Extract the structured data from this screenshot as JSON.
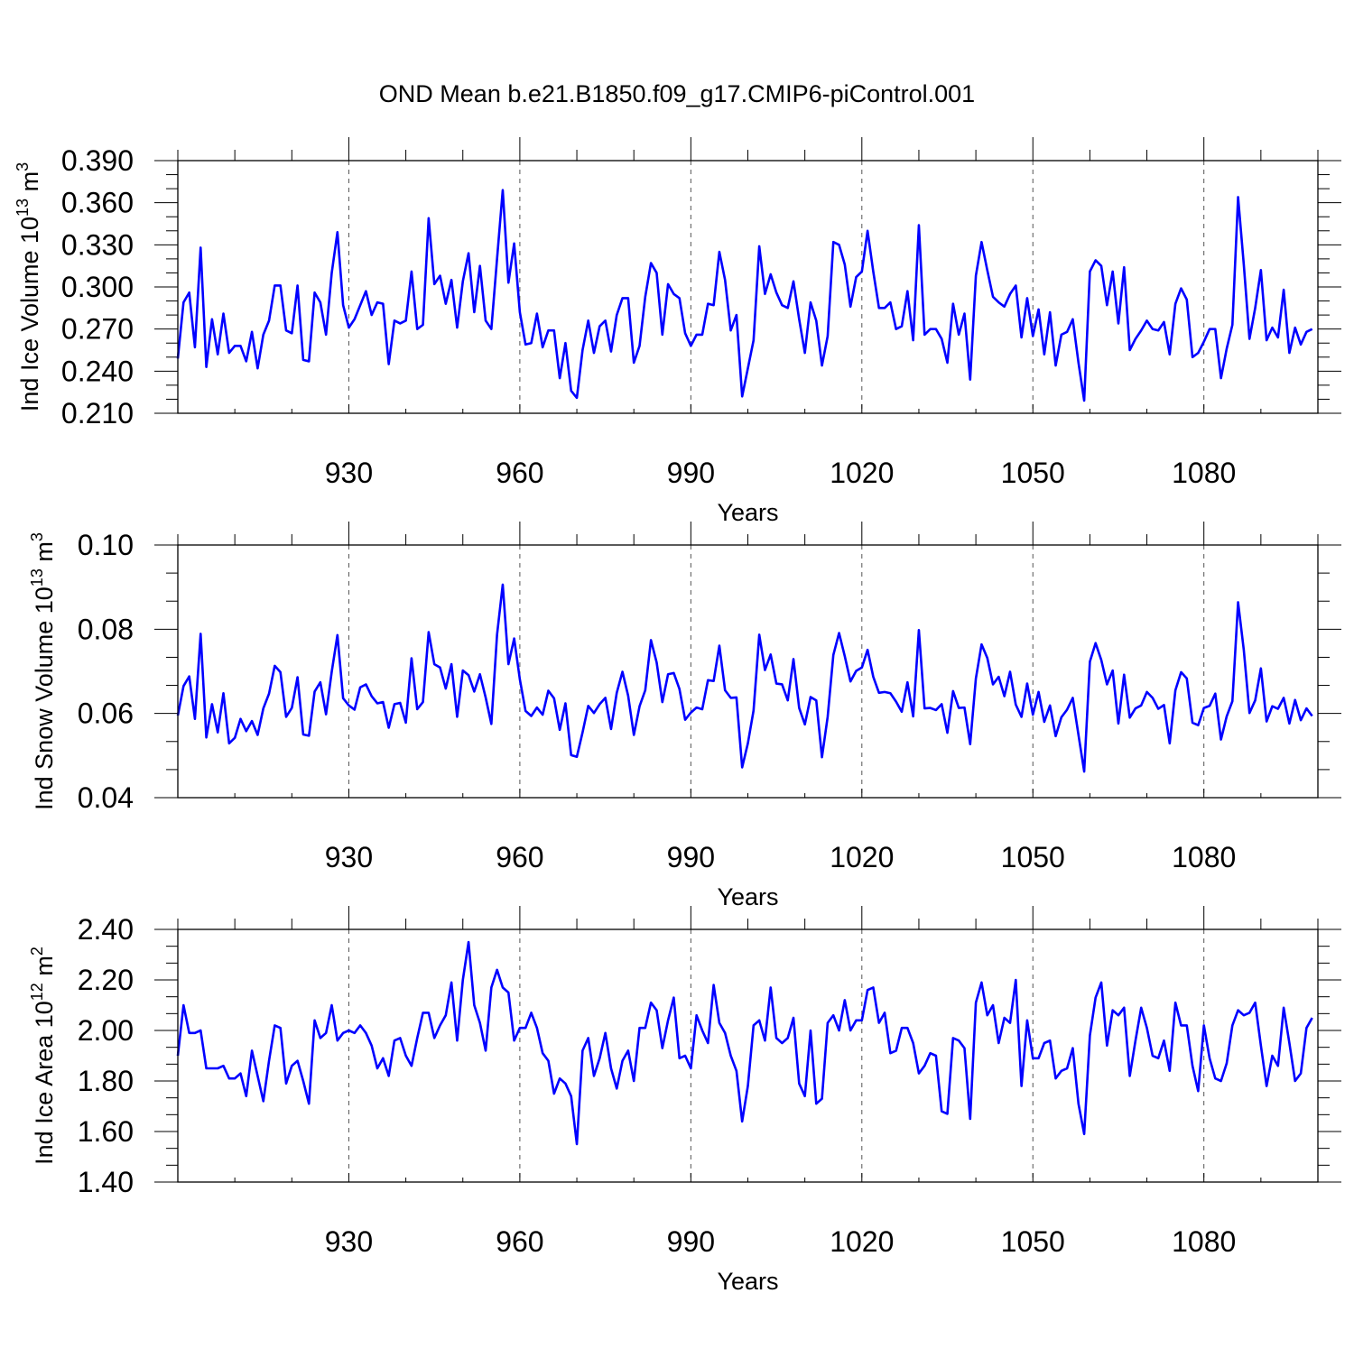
{
  "title": "OND Mean b.e21.B1850.f09_g17.CMIP6-piControl.001",
  "chart_data": [
    {
      "type": "line",
      "ylabel_main": "Ind Ice Volume 10",
      "ylabel_sup": "13",
      "ylabel_unit": " m",
      "ylabel_unit_sup": "3",
      "xlabel": "Years",
      "xlim": [
        900,
        1100
      ],
      "ylim": [
        0.21,
        0.39
      ],
      "y_ticks": [
        "0.210",
        "0.240",
        "0.270",
        "0.300",
        "0.330",
        "0.360",
        "0.390"
      ],
      "y_tick_values": [
        0.21,
        0.24,
        0.27,
        0.3,
        0.33,
        0.36,
        0.39
      ],
      "x_ticks": [
        "930",
        "960",
        "990",
        "1020",
        "1050",
        "1080"
      ],
      "x_tick_values": [
        930,
        960,
        990,
        1020,
        1050,
        1080
      ],
      "line_color": "#0000ff",
      "x_start": 900,
      "values": [
        0.249,
        0.289,
        0.296,
        0.257,
        0.328,
        0.243,
        0.277,
        0.252,
        0.281,
        0.253,
        0.258,
        0.258,
        0.247,
        0.268,
        0.242,
        0.266,
        0.276,
        0.301,
        0.301,
        0.269,
        0.267,
        0.301,
        0.248,
        0.247,
        0.296,
        0.289,
        0.266,
        0.31,
        0.339,
        0.287,
        0.271,
        0.277,
        0.287,
        0.297,
        0.28,
        0.289,
        0.288,
        0.245,
        0.276,
        0.274,
        0.276,
        0.311,
        0.27,
        0.273,
        0.349,
        0.302,
        0.308,
        0.288,
        0.305,
        0.271,
        0.304,
        0.324,
        0.282,
        0.315,
        0.276,
        0.27,
        0.32,
        0.369,
        0.303,
        0.331,
        0.282,
        0.259,
        0.26,
        0.281,
        0.257,
        0.269,
        0.269,
        0.235,
        0.26,
        0.226,
        0.221,
        0.255,
        0.276,
        0.253,
        0.272,
        0.276,
        0.254,
        0.28,
        0.292,
        0.292,
        0.246,
        0.258,
        0.293,
        0.317,
        0.31,
        0.266,
        0.302,
        0.295,
        0.292,
        0.267,
        0.258,
        0.266,
        0.266,
        0.288,
        0.287,
        0.325,
        0.305,
        0.269,
        0.28,
        0.222,
        0.242,
        0.262,
        0.329,
        0.295,
        0.309,
        0.296,
        0.287,
        0.285,
        0.304,
        0.277,
        0.253,
        0.289,
        0.276,
        0.244,
        0.265,
        0.332,
        0.33,
        0.316,
        0.286,
        0.307,
        0.311,
        0.34,
        0.311,
        0.285,
        0.285,
        0.289,
        0.27,
        0.272,
        0.297,
        0.262,
        0.344,
        0.266,
        0.27,
        0.27,
        0.263,
        0.246,
        0.288,
        0.266,
        0.281,
        0.234,
        0.308,
        0.332,
        0.312,
        0.293,
        0.289,
        0.286,
        0.295,
        0.301,
        0.264,
        0.292,
        0.265,
        0.284,
        0.252,
        0.282,
        0.244,
        0.266,
        0.268,
        0.277,
        0.246,
        0.219,
        0.311,
        0.319,
        0.315,
        0.287,
        0.311,
        0.274,
        0.314,
        0.255,
        0.263,
        0.269,
        0.276,
        0.27,
        0.269,
        0.275,
        0.252,
        0.288,
        0.299,
        0.291,
        0.25,
        0.253,
        0.261,
        0.27,
        0.27,
        0.235,
        0.256,
        0.273,
        0.364,
        0.316,
        0.263,
        0.285,
        0.312,
        0.262,
        0.271,
        0.264,
        0.298,
        0.253,
        0.271,
        0.259,
        0.268,
        0.27
      ]
    },
    {
      "type": "line",
      "ylabel_main": "Ind Snow Volume 10",
      "ylabel_sup": "13",
      "ylabel_unit": " m",
      "ylabel_unit_sup": "3",
      "xlabel": "Years",
      "xlim": [
        900,
        1100
      ],
      "ylim": [
        0.04,
        0.1
      ],
      "y_ticks": [
        "0.04",
        "0.06",
        "0.08",
        "0.10"
      ],
      "y_tick_values": [
        0.04,
        0.06,
        0.08,
        0.1
      ],
      "x_ticks": [
        "930",
        "960",
        "990",
        "1020",
        "1050",
        "1080"
      ],
      "x_tick_values": [
        930,
        960,
        990,
        1020,
        1050,
        1080
      ],
      "line_color": "#0000ff",
      "x_start": 900,
      "values": [
        0.0595,
        0.0665,
        0.0688,
        0.0587,
        0.0789,
        0.0543,
        0.0622,
        0.0555,
        0.0648,
        0.0529,
        0.0542,
        0.0587,
        0.0558,
        0.0582,
        0.0549,
        0.0612,
        0.0647,
        0.0713,
        0.0698,
        0.0592,
        0.0613,
        0.0686,
        0.055,
        0.0547,
        0.0652,
        0.0674,
        0.0598,
        0.0699,
        0.0786,
        0.0636,
        0.0619,
        0.0609,
        0.0662,
        0.0669,
        0.0641,
        0.0624,
        0.0627,
        0.0566,
        0.0622,
        0.0625,
        0.0578,
        0.0731,
        0.061,
        0.0627,
        0.0793,
        0.0717,
        0.0709,
        0.0659,
        0.0717,
        0.0592,
        0.0702,
        0.0691,
        0.0652,
        0.0693,
        0.0638,
        0.0575,
        0.0787,
        0.0906,
        0.0717,
        0.0778,
        0.0681,
        0.0606,
        0.0594,
        0.0614,
        0.0597,
        0.0654,
        0.0636,
        0.0561,
        0.0624,
        0.0501,
        0.0497,
        0.0555,
        0.0618,
        0.0601,
        0.0622,
        0.0637,
        0.0563,
        0.0649,
        0.0699,
        0.0642,
        0.0549,
        0.0617,
        0.0655,
        0.0774,
        0.0721,
        0.0627,
        0.0693,
        0.0696,
        0.0658,
        0.0585,
        0.0602,
        0.0614,
        0.061,
        0.0679,
        0.0677,
        0.0761,
        0.0655,
        0.0637,
        0.0638,
        0.0472,
        0.0529,
        0.0607,
        0.0787,
        0.0703,
        0.074,
        0.0671,
        0.0669,
        0.0631,
        0.0729,
        0.0613,
        0.0574,
        0.0639,
        0.0631,
        0.0496,
        0.0592,
        0.0739,
        0.0791,
        0.0736,
        0.0676,
        0.0701,
        0.0709,
        0.0751,
        0.0687,
        0.0649,
        0.0651,
        0.0648,
        0.0628,
        0.0604,
        0.0674,
        0.0593,
        0.0798,
        0.0612,
        0.0613,
        0.0608,
        0.0622,
        0.0554,
        0.0653,
        0.0613,
        0.0614,
        0.0527,
        0.0683,
        0.0764,
        0.0732,
        0.0669,
        0.0687,
        0.0641,
        0.0699,
        0.0621,
        0.0592,
        0.0671,
        0.0597,
        0.0651,
        0.058,
        0.0619,
        0.0546,
        0.0591,
        0.0609,
        0.0637,
        0.0549,
        0.0462,
        0.0723,
        0.0767,
        0.0727,
        0.0669,
        0.0702,
        0.0576,
        0.0692,
        0.059,
        0.0612,
        0.0619,
        0.0651,
        0.0637,
        0.0611,
        0.062,
        0.0529,
        0.0655,
        0.0698,
        0.0683,
        0.0578,
        0.0572,
        0.0613,
        0.0618,
        0.0647,
        0.0538,
        0.0593,
        0.0629,
        0.0864,
        0.0751,
        0.0601,
        0.0631,
        0.0707,
        0.0581,
        0.0617,
        0.0611,
        0.0637,
        0.0576,
        0.0632,
        0.0584,
        0.0612,
        0.0594
      ]
    },
    {
      "type": "line",
      "ylabel_main": "Ind Ice Area 10",
      "ylabel_sup": "12",
      "ylabel_unit": " m",
      "ylabel_unit_sup": "2",
      "xlabel": "Years",
      "xlim": [
        900,
        1100
      ],
      "ylim": [
        1.4,
        2.4
      ],
      "y_ticks": [
        "1.40",
        "1.60",
        "1.80",
        "2.00",
        "2.20",
        "2.40"
      ],
      "y_tick_values": [
        1.4,
        1.6,
        1.8,
        2.0,
        2.2,
        2.4
      ],
      "x_ticks": [
        "930",
        "960",
        "990",
        "1020",
        "1050",
        "1080"
      ],
      "x_tick_values": [
        930,
        960,
        990,
        1020,
        1050,
        1080
      ],
      "line_color": "#0000ff",
      "x_start": 900,
      "values": [
        1.9,
        2.1,
        1.99,
        1.99,
        2.0,
        1.85,
        1.85,
        1.85,
        1.86,
        1.81,
        1.81,
        1.83,
        1.74,
        1.92,
        1.82,
        1.72,
        1.88,
        2.02,
        2.01,
        1.79,
        1.86,
        1.88,
        1.8,
        1.71,
        2.04,
        1.97,
        1.99,
        2.1,
        1.96,
        1.99,
        2.0,
        1.99,
        2.02,
        1.99,
        1.94,
        1.85,
        1.89,
        1.82,
        1.96,
        1.97,
        1.9,
        1.86,
        1.97,
        2.07,
        2.07,
        1.97,
        2.02,
        2.06,
        2.19,
        1.96,
        2.2,
        2.35,
        2.1,
        2.03,
        1.92,
        2.17,
        2.24,
        2.17,
        2.15,
        1.96,
        2.01,
        2.01,
        2.07,
        2.01,
        1.91,
        1.88,
        1.75,
        1.81,
        1.79,
        1.74,
        1.55,
        1.92,
        1.97,
        1.82,
        1.89,
        1.99,
        1.85,
        1.77,
        1.88,
        1.92,
        1.8,
        2.01,
        2.01,
        2.11,
        2.08,
        1.93,
        2.04,
        2.13,
        1.89,
        1.9,
        1.85,
        2.06,
        2.0,
        1.95,
        2.18,
        2.03,
        1.99,
        1.9,
        1.84,
        1.64,
        1.78,
        2.02,
        2.04,
        1.96,
        2.17,
        1.97,
        1.95,
        1.97,
        2.05,
        1.79,
        1.74,
        2.0,
        1.71,
        1.73,
        2.03,
        2.06,
        2.0,
        2.12,
        2.0,
        2.04,
        2.04,
        2.16,
        2.17,
        2.03,
        2.07,
        1.91,
        1.92,
        2.01,
        2.01,
        1.95,
        1.83,
        1.86,
        1.91,
        1.9,
        1.68,
        1.67,
        1.97,
        1.96,
        1.93,
        1.65,
        2.11,
        2.19,
        2.06,
        2.1,
        1.95,
        2.05,
        2.03,
        2.2,
        1.78,
        2.04,
        1.89,
        1.89,
        1.95,
        1.96,
        1.81,
        1.84,
        1.85,
        1.93,
        1.71,
        1.59,
        1.98,
        2.13,
        2.19,
        1.94,
        2.08,
        2.06,
        2.09,
        1.82,
        1.96,
        2.09,
        2.01,
        1.9,
        1.89,
        1.96,
        1.84,
        2.11,
        2.02,
        2.02,
        1.86,
        1.76,
        2.02,
        1.89,
        1.81,
        1.8,
        1.87,
        2.02,
        2.08,
        2.06,
        2.07,
        2.11,
        1.94,
        1.78,
        1.9,
        1.86,
        2.09,
        1.95,
        1.8,
        1.83,
        2.01,
        2.05
      ]
    }
  ]
}
